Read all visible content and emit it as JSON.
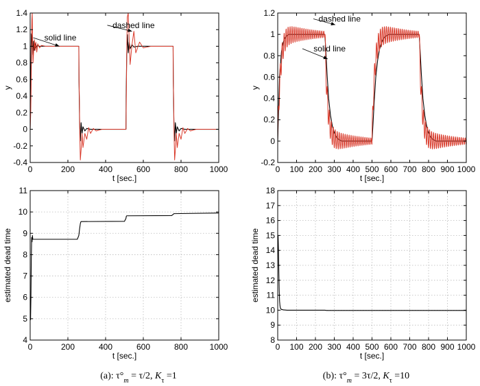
{
  "chart_data": [
    {
      "id": "a-top",
      "type": "line",
      "xlabel": "t [sec.]",
      "ylabel": "y",
      "xlim": [
        0,
        1000
      ],
      "ylim": [
        -0.4,
        1.4
      ],
      "xticks": [
        0,
        200,
        400,
        600,
        800,
        1000
      ],
      "yticks": [
        -0.4,
        -0.2,
        0,
        0.2,
        0.4,
        0.6,
        0.8,
        1,
        1.2,
        1.4
      ],
      "grid": false,
      "series": [
        {
          "style": "solid",
          "color": "#000000",
          "x": [
            0,
            3,
            6,
            10,
            14,
            18,
            22,
            26,
            30,
            38,
            46,
            60,
            100,
            258,
            259,
            262,
            266,
            270,
            275,
            280,
            290,
            300,
            320,
            360,
            400,
            500,
            508,
            509,
            512,
            516,
            520,
            525,
            530,
            540,
            550,
            570,
            610,
            750,
            758,
            759,
            762,
            766,
            770,
            775,
            780,
            790,
            800,
            820,
            860,
            1000
          ],
          "y": [
            0,
            0.6,
            1.15,
            1.12,
            0.9,
            1.06,
            0.95,
            1.03,
            0.98,
            1.01,
            1.0,
            1.0,
            1.0,
            1.0,
            0.6,
            0.1,
            -0.14,
            0.08,
            -0.05,
            0.03,
            -0.02,
            0.01,
            0.0,
            0.0,
            0.0,
            0.0,
            0.0,
            0.4,
            0.9,
            1.14,
            0.92,
            1.05,
            0.97,
            1.02,
            0.99,
            1.0,
            1.0,
            1.0,
            1.0,
            0.6,
            0.1,
            -0.14,
            0.08,
            -0.05,
            0.03,
            -0.02,
            0.01,
            0.0,
            0.0,
            0.0
          ]
        },
        {
          "style": "dashed",
          "color": "#d93a2b",
          "x": [
            0,
            3,
            5,
            7,
            9,
            11,
            13,
            15,
            18,
            22,
            26,
            30,
            35,
            40,
            50,
            60,
            80,
            258,
            259,
            261,
            263,
            266,
            270,
            275,
            280,
            290,
            300,
            310,
            320,
            335,
            350,
            380,
            500,
            508,
            510,
            512,
            515,
            520,
            530,
            540,
            550,
            560,
            580,
            600,
            640,
            750,
            758,
            759,
            761,
            763,
            766,
            770,
            775,
            780,
            790,
            800,
            810,
            820,
            835,
            850,
            880,
            1000
          ],
          "y": [
            0,
            0.2,
            0.5,
            0.95,
            1.32,
            1.4,
            1.02,
            0.8,
            0.92,
            1.08,
            0.95,
            1.05,
            0.93,
            1.03,
            0.98,
            1.01,
            1.0,
            1.0,
            0.6,
            0.35,
            -0.05,
            -0.37,
            -0.25,
            -0.05,
            -0.22,
            -0.05,
            -0.12,
            0.02,
            -0.05,
            0.01,
            -0.02,
            0.0,
            0.0,
            0.0,
            0.4,
            0.9,
            1.35,
            1.4,
            0.78,
            1.02,
            1.18,
            0.92,
            1.05,
            0.98,
            1.0,
            1.0,
            1.0,
            0.6,
            0.35,
            -0.05,
            -0.37,
            -0.25,
            -0.05,
            -0.22,
            -0.05,
            -0.12,
            0.02,
            -0.05,
            0.01,
            -0.02,
            0.0,
            0.0
          ]
        }
      ],
      "annotations": [
        {
          "text": "solid line",
          "text_x": 245,
          "text_y": 1.07,
          "arrow_to": [
            155,
            1.0
          ]
        },
        {
          "text": "dashed line",
          "text_x": 660,
          "text_y": 1.22,
          "arrow_to": [
            540,
            1.18
          ]
        }
      ]
    },
    {
      "id": "b-top",
      "type": "line",
      "xlabel": "t [sec.]",
      "ylabel": "y",
      "xlim": [
        0,
        1000
      ],
      "ylim": [
        -0.2,
        1.2
      ],
      "xticks": [
        0,
        100,
        200,
        300,
        400,
        500,
        600,
        700,
        800,
        900,
        1000
      ],
      "yticks": [
        -0.2,
        0,
        0.2,
        0.4,
        0.6,
        0.8,
        1,
        1.2
      ],
      "grid": false,
      "series": [
        {
          "style": "solid",
          "color": "#000000",
          "x": [
            0,
            10,
            20,
            30,
            40,
            50,
            60,
            80,
            250,
            255,
            262,
            270,
            280,
            290,
            300,
            310,
            320,
            330,
            340,
            360,
            500,
            505,
            512,
            520,
            530,
            540,
            550,
            560,
            570,
            580,
            590,
            610,
            750,
            755,
            762,
            770,
            780,
            790,
            800,
            810,
            820,
            830,
            840,
            860,
            1000
          ],
          "y": [
            0,
            0.62,
            0.84,
            0.93,
            0.97,
            0.99,
            1.0,
            1.0,
            1.0,
            0.85,
            0.62,
            0.4,
            0.24,
            0.14,
            0.08,
            0.04,
            0.02,
            0.01,
            0.0,
            0.0,
            0.0,
            0.15,
            0.38,
            0.6,
            0.76,
            0.86,
            0.92,
            0.96,
            0.98,
            0.99,
            1.0,
            1.0,
            1.0,
            0.85,
            0.62,
            0.4,
            0.24,
            0.14,
            0.08,
            0.04,
            0.02,
            0.01,
            0.0,
            0.0,
            0.0
          ]
        },
        {
          "style": "dashed",
          "color": "#d93a2b",
          "envelope": {
            "segments": [
              {
                "t0": 0,
                "t1": 250,
                "base": 1,
                "amp": 0.12,
                "tau": 180,
                "period": 10.5,
                "rise": true
              },
              {
                "t0": 250,
                "t1": 500,
                "base": 0,
                "amp": 0.12,
                "tau": 180,
                "period": 10.5,
                "rise": false
              },
              {
                "t0": 500,
                "t1": 750,
                "base": 1,
                "amp": 0.12,
                "tau": 180,
                "period": 10.5,
                "rise": true
              },
              {
                "t0": 750,
                "t1": 1000,
                "base": 0,
                "amp": 0.12,
                "tau": 180,
                "period": 10.5,
                "rise": false
              }
            ]
          }
        }
      ],
      "annotations": [
        {
          "text": "dashed line",
          "text_x": 440,
          "text_y": 1.12,
          "arrow_to": [
            305,
            1.09
          ]
        },
        {
          "text": "solid line",
          "text_x": 360,
          "text_y": 0.84,
          "arrow_to": [
            265,
            0.77
          ]
        }
      ]
    },
    {
      "id": "a-bottom",
      "type": "line",
      "xlabel": "t [sec.]",
      "ylabel": "estimated dead time",
      "xlim": [
        0,
        1000
      ],
      "ylim": [
        4,
        11
      ],
      "xticks": [
        0,
        200,
        400,
        600,
        800,
        1000
      ],
      "yticks": [
        4,
        5,
        6,
        7,
        8,
        9,
        10,
        11
      ],
      "grid": true,
      "series": [
        {
          "style": "solid",
          "color": "#000000",
          "x": [
            0,
            2,
            4,
            6,
            8,
            10,
            12,
            14,
            250,
            258,
            262,
            266,
            268,
            270,
            500,
            508,
            510,
            512,
            750,
            760,
            762,
            1000
          ],
          "y": [
            5.0,
            4.95,
            6.0,
            7.8,
            8.8,
            8.6,
            8.9,
            8.72,
            8.72,
            8.9,
            9.2,
            9.45,
            9.52,
            9.55,
            9.56,
            9.7,
            9.8,
            9.82,
            9.83,
            9.9,
            9.92,
            9.95
          ]
        }
      ]
    },
    {
      "id": "b-bottom",
      "type": "line",
      "xlabel": "t [sec.]",
      "ylabel": "estimated dead time",
      "xlim": [
        0,
        1000
      ],
      "ylim": [
        8,
        18
      ],
      "xticks": [
        0,
        100,
        200,
        300,
        400,
        500,
        600,
        700,
        800,
        900,
        1000
      ],
      "yticks": [
        8,
        9,
        10,
        11,
        12,
        13,
        14,
        15,
        16,
        17,
        18
      ],
      "grid": true,
      "series": [
        {
          "style": "solid",
          "color": "#000000",
          "x": [
            0,
            2,
            4,
            6,
            8,
            10,
            12,
            14,
            16,
            20,
            30,
            50,
            100,
            250,
            260,
            1000
          ],
          "y": [
            15.0,
            15.0,
            14.0,
            12.5,
            11.3,
            10.6,
            10.3,
            10.15,
            10.1,
            10.05,
            10.02,
            10.0,
            10.0,
            10.0,
            9.98,
            9.98
          ]
        }
      ]
    }
  ],
  "captions": {
    "a": {
      "main": "(a): τ°",
      "sub1": "m",
      "mid": " = τ/2, ",
      "K": "K",
      "sub2": "τ",
      "tail": " =1"
    },
    "b": {
      "main": "(b): τ°",
      "sub1": "m",
      "mid": " = 3τ/2, ",
      "K": "K",
      "sub2": "τ",
      "tail": " =10"
    }
  }
}
